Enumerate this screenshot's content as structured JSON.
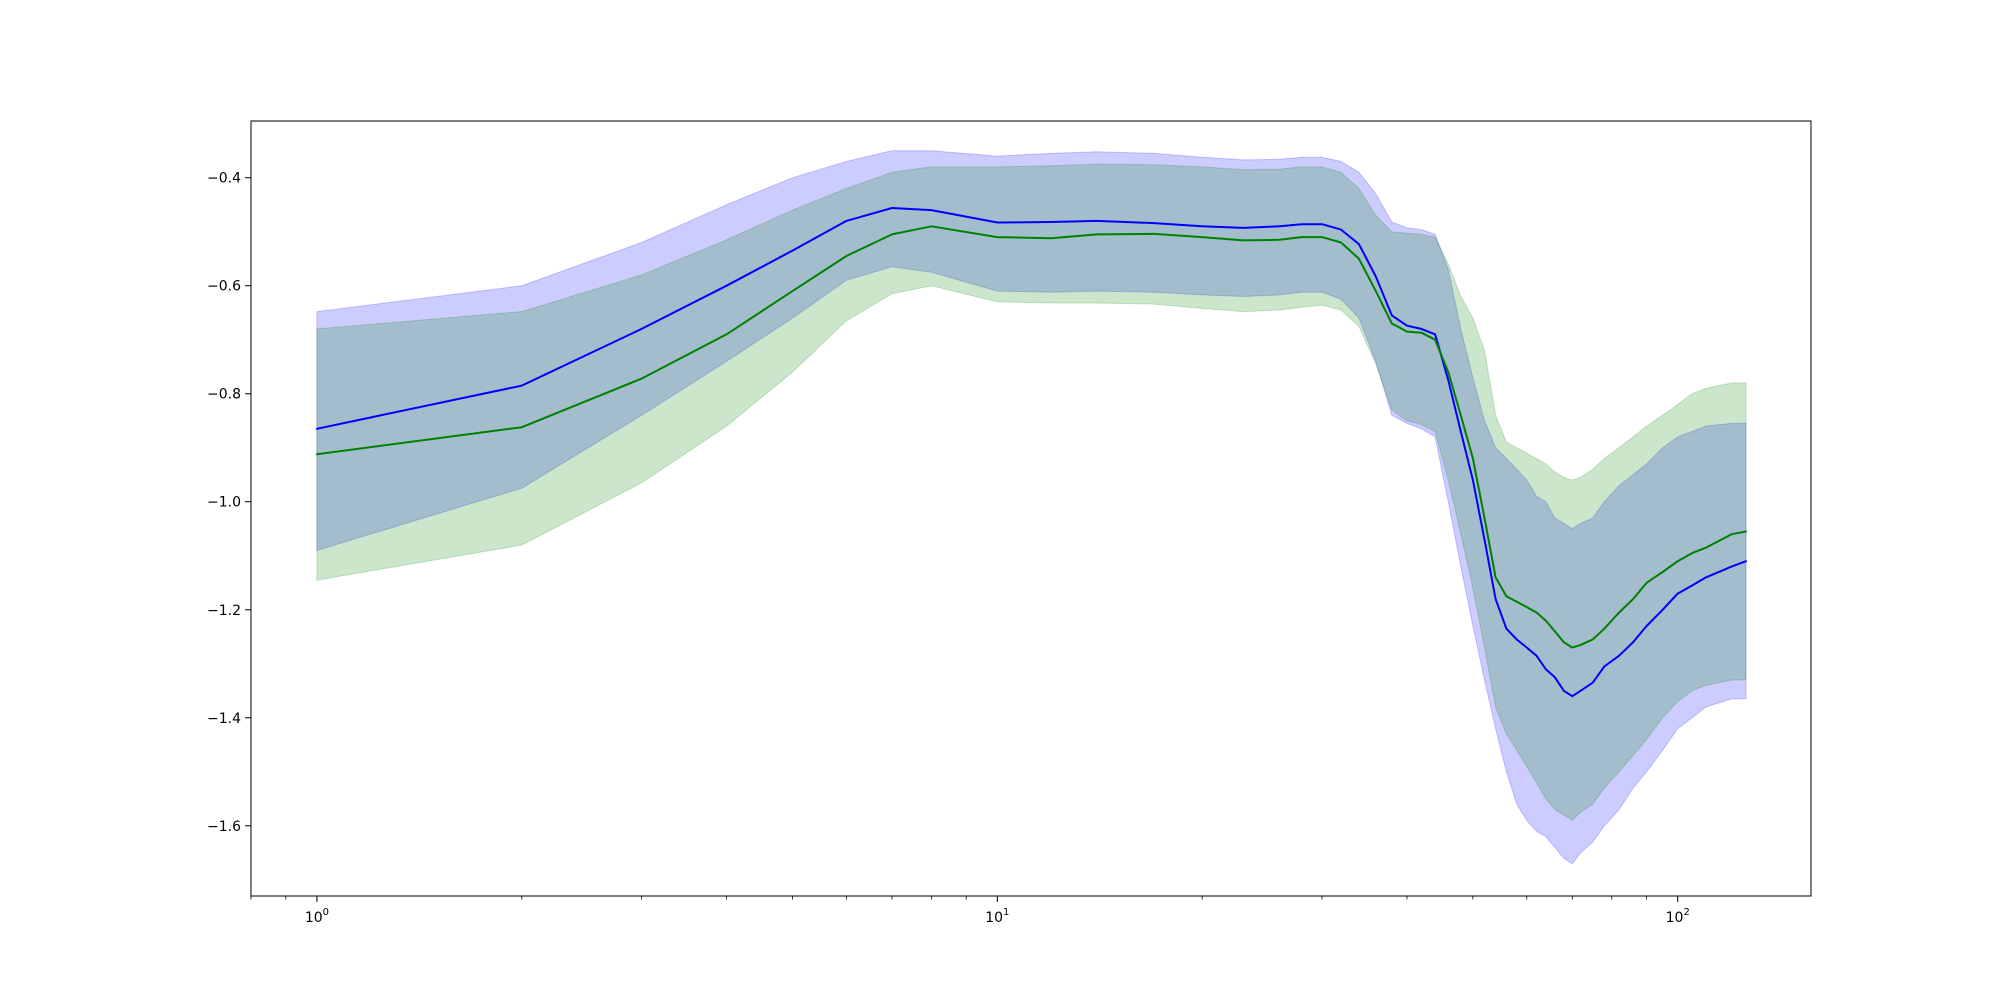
{
  "chart_data": {
    "type": "line",
    "title": "",
    "xlabel": "",
    "ylabel": "",
    "xscale": "log",
    "xlim": [
      0.8,
      157
    ],
    "ylim": [
      -1.73,
      -0.295
    ],
    "grid": false,
    "legend": "none",
    "x_ticks": [
      {
        "value": 1,
        "base": "10",
        "exp": "0"
      },
      {
        "value": 10,
        "base": "10",
        "exp": "1"
      },
      {
        "value": 100,
        "base": "10",
        "exp": "2"
      }
    ],
    "y_ticks": [
      {
        "value": -0.4,
        "label": "−0.4"
      },
      {
        "value": -0.6,
        "label": "−0.6"
      },
      {
        "value": -0.8,
        "label": "−0.8"
      },
      {
        "value": -1.0,
        "label": "−1.0"
      },
      {
        "value": -1.2,
        "label": "−1.2"
      },
      {
        "value": -1.4,
        "label": "−1.4"
      },
      {
        "value": -1.6,
        "label": "−1.6"
      }
    ],
    "series": [
      {
        "color": "#0000ff",
        "band_color": "#0000ff",
        "band_opacity": 0.2,
        "x": [
          1,
          2,
          3,
          4,
          5,
          6,
          7,
          8,
          10,
          12,
          14,
          17,
          20,
          23,
          26,
          28,
          30,
          32,
          34,
          36,
          38,
          40,
          42,
          44,
          46,
          48,
          50,
          52,
          54,
          56,
          58,
          60,
          62,
          64,
          66,
          68,
          70,
          72,
          75,
          78,
          82,
          86,
          90,
          95,
          100,
          105,
          110,
          120,
          126
        ],
        "y": [
          -0.865,
          -0.785,
          -0.68,
          -0.6,
          -0.535,
          -0.48,
          -0.456,
          -0.46,
          -0.483,
          -0.482,
          -0.48,
          -0.484,
          -0.49,
          -0.493,
          -0.49,
          -0.486,
          -0.486,
          -0.496,
          -0.523,
          -0.583,
          -0.655,
          -0.674,
          -0.68,
          -0.69,
          -0.775,
          -0.87,
          -0.96,
          -1.07,
          -1.18,
          -1.235,
          -1.255,
          -1.27,
          -1.285,
          -1.31,
          -1.325,
          -1.35,
          -1.36,
          -1.35,
          -1.335,
          -1.305,
          -1.285,
          -1.26,
          -1.23,
          -1.2,
          -1.17,
          -1.155,
          -1.14,
          -1.12,
          -1.11
        ],
        "upper": [
          -0.648,
          -0.6,
          -0.52,
          -0.45,
          -0.4,
          -0.37,
          -0.35,
          -0.35,
          -0.36,
          -0.355,
          -0.352,
          -0.355,
          -0.362,
          -0.367,
          -0.366,
          -0.362,
          -0.362,
          -0.37,
          -0.39,
          -0.43,
          -0.482,
          -0.493,
          -0.496,
          -0.505,
          -0.57,
          -0.68,
          -0.77,
          -0.85,
          -0.9,
          -0.92,
          -0.94,
          -0.96,
          -0.99,
          -1.0,
          -1.03,
          -1.04,
          -1.05,
          -1.04,
          -1.03,
          -1.0,
          -0.97,
          -0.95,
          -0.93,
          -0.9,
          -0.88,
          -0.87,
          -0.86,
          -0.855,
          -0.855
        ],
        "lower": [
          -1.09,
          -0.975,
          -0.84,
          -0.74,
          -0.66,
          -0.59,
          -0.565,
          -0.575,
          -0.61,
          -0.612,
          -0.61,
          -0.612,
          -0.617,
          -0.62,
          -0.617,
          -0.612,
          -0.612,
          -0.625,
          -0.66,
          -0.74,
          -0.84,
          -0.855,
          -0.865,
          -0.88,
          -1.0,
          -1.12,
          -1.23,
          -1.33,
          -1.42,
          -1.5,
          -1.56,
          -1.59,
          -1.61,
          -1.62,
          -1.64,
          -1.66,
          -1.67,
          -1.65,
          -1.63,
          -1.6,
          -1.57,
          -1.53,
          -1.5,
          -1.46,
          -1.42,
          -1.4,
          -1.38,
          -1.365,
          -1.365
        ]
      },
      {
        "color": "#008000",
        "band_color": "#008000",
        "band_opacity": 0.2,
        "x": [
          1,
          2,
          3,
          4,
          5,
          6,
          7,
          8,
          10,
          12,
          14,
          17,
          20,
          23,
          26,
          28,
          30,
          32,
          34,
          36,
          38,
          40,
          42,
          44,
          46,
          48,
          50,
          52,
          54,
          56,
          58,
          60,
          62,
          64,
          66,
          68,
          70,
          72,
          75,
          78,
          82,
          86,
          90,
          95,
          100,
          105,
          110,
          120,
          126
        ],
        "y": [
          -0.912,
          -0.862,
          -0.772,
          -0.69,
          -0.61,
          -0.545,
          -0.505,
          -0.49,
          -0.51,
          -0.512,
          -0.505,
          -0.504,
          -0.51,
          -0.516,
          -0.515,
          -0.51,
          -0.51,
          -0.52,
          -0.55,
          -0.61,
          -0.67,
          -0.685,
          -0.687,
          -0.7,
          -0.76,
          -0.84,
          -0.92,
          -1.03,
          -1.14,
          -1.175,
          -1.185,
          -1.195,
          -1.205,
          -1.22,
          -1.24,
          -1.26,
          -1.27,
          -1.265,
          -1.255,
          -1.235,
          -1.205,
          -1.18,
          -1.15,
          -1.13,
          -1.11,
          -1.095,
          -1.085,
          -1.06,
          -1.055
        ],
        "upper": [
          -0.68,
          -0.648,
          -0.58,
          -0.515,
          -0.46,
          -0.42,
          -0.39,
          -0.38,
          -0.38,
          -0.378,
          -0.375,
          -0.376,
          -0.38,
          -0.385,
          -0.384,
          -0.38,
          -0.38,
          -0.39,
          -0.42,
          -0.47,
          -0.5,
          -0.503,
          -0.505,
          -0.51,
          -0.56,
          -0.62,
          -0.66,
          -0.72,
          -0.84,
          -0.89,
          -0.9,
          -0.91,
          -0.92,
          -0.93,
          -0.945,
          -0.955,
          -0.96,
          -0.955,
          -0.94,
          -0.92,
          -0.9,
          -0.88,
          -0.86,
          -0.84,
          -0.82,
          -0.8,
          -0.79,
          -0.78,
          -0.78
        ],
        "lower": [
          -1.145,
          -1.08,
          -0.965,
          -0.86,
          -0.76,
          -0.665,
          -0.615,
          -0.6,
          -0.63,
          -0.632,
          -0.632,
          -0.634,
          -0.642,
          -0.648,
          -0.645,
          -0.64,
          -0.636,
          -0.645,
          -0.675,
          -0.745,
          -0.83,
          -0.85,
          -0.857,
          -0.87,
          -0.96,
          -1.06,
          -1.16,
          -1.27,
          -1.38,
          -1.43,
          -1.46,
          -1.49,
          -1.52,
          -1.55,
          -1.57,
          -1.58,
          -1.59,
          -1.575,
          -1.56,
          -1.53,
          -1.5,
          -1.47,
          -1.44,
          -1.4,
          -1.37,
          -1.35,
          -1.34,
          -1.33,
          -1.33
        ]
      }
    ]
  }
}
